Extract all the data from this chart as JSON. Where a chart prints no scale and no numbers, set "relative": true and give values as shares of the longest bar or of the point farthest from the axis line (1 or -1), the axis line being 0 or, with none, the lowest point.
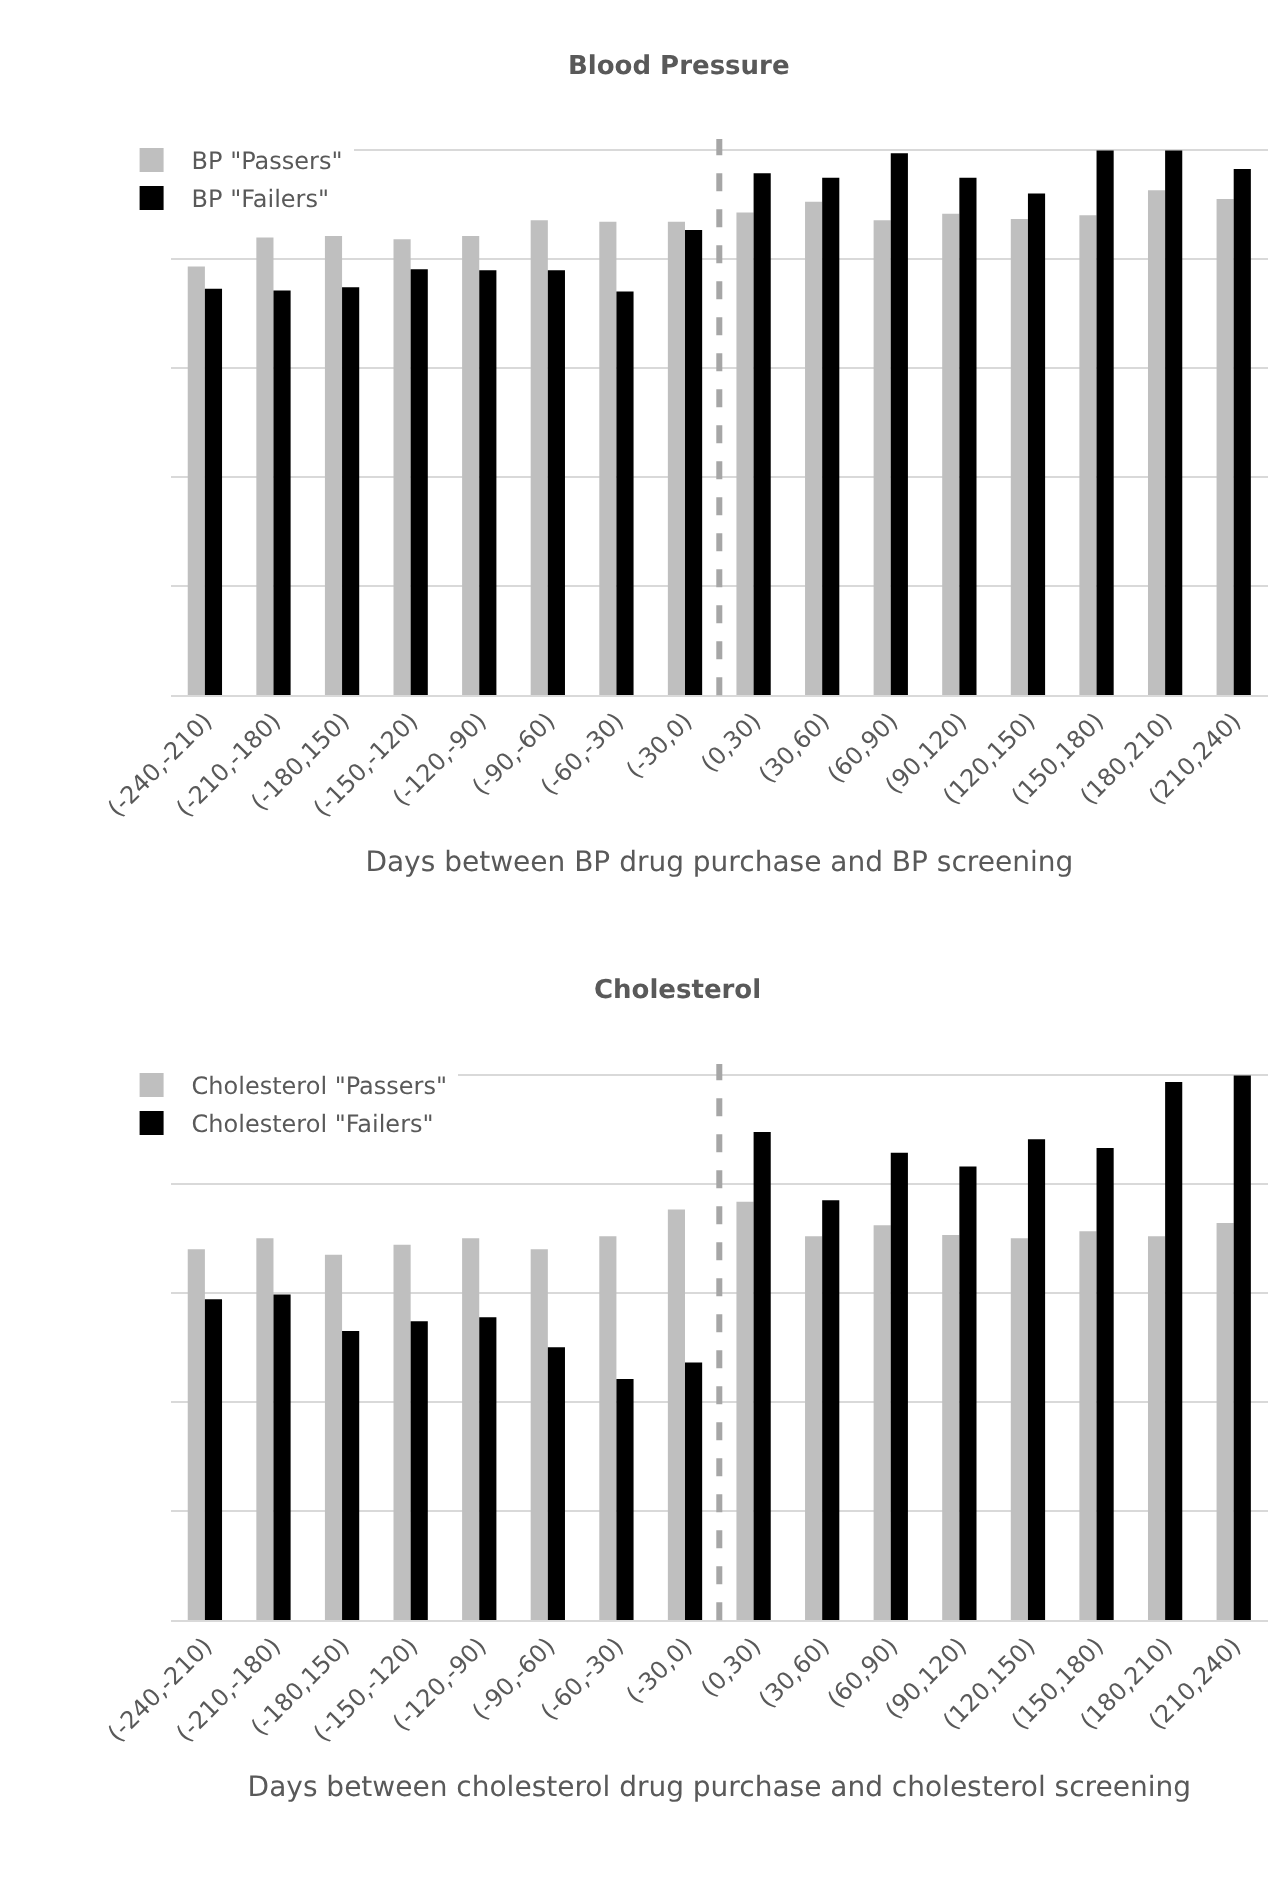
{
  "chart_data": [
    {
      "type": "bar",
      "title": "Blood Pressure",
      "xlabel": "Days between BP drug purchase and BP screening",
      "relative": true,
      "grid": "y",
      "legend": "top left",
      "categories": [
        "(-240,-210)",
        "(-210,-180)",
        "(-180,150)",
        "(-150,-120)",
        "(-120,-90)",
        "(-90,-60)",
        "(-60,-30)",
        "(-30,0)",
        "(0,30)",
        "(30,60)",
        "(60,90)",
        "(90,120)",
        "(120,150)",
        "(150,180)",
        "(180,210)",
        "(210,240)"
      ],
      "series": [
        {
          "name": "BP \"Passers\"",
          "color": "#bfbfbf",
          "values": [
            0.787,
            0.84,
            0.843,
            0.837,
            0.843,
            0.872,
            0.869,
            0.869,
            0.886,
            0.906,
            0.872,
            0.884,
            0.874,
            0.881,
            0.927,
            0.911
          ]
        },
        {
          "name": "BP \"Failers\"",
          "color": "#000000",
          "values": [
            0.746,
            0.743,
            0.749,
            0.782,
            0.78,
            0.78,
            0.741,
            0.854,
            0.958,
            0.95,
            0.995,
            0.95,
            0.921,
            1.0,
            1.0,
            0.966
          ]
        }
      ]
    },
    {
      "type": "bar",
      "title": "Cholesterol",
      "xlabel": "Days between cholesterol drug purchase and cholesterol screening",
      "relative": true,
      "grid": "y",
      "legend": "top left",
      "categories": [
        "(-240,-210)",
        "(-210,-180)",
        "(-180,150)",
        "(-150,-120)",
        "(-120,-90)",
        "(-90,-60)",
        "(-60,-30)",
        "(-30,0)",
        "(0,30)",
        "(30,60)",
        "(60,90)",
        "(90,120)",
        "(120,150)",
        "(150,180)",
        "(180,210)",
        "(210,240)"
      ],
      "series": [
        {
          "name": "Cholesterol \"Passers\"",
          "color": "#bfbfbf",
          "values": [
            0.681,
            0.701,
            0.671,
            0.689,
            0.701,
            0.681,
            0.705,
            0.754,
            0.768,
            0.705,
            0.725,
            0.707,
            0.701,
            0.714,
            0.705,
            0.729
          ]
        },
        {
          "name": "Cholesterol \"Failers\"",
          "color": "#000000",
          "values": [
            0.589,
            0.598,
            0.531,
            0.549,
            0.556,
            0.501,
            0.443,
            0.473,
            0.896,
            0.771,
            0.858,
            0.833,
            0.883,
            0.867,
            0.988,
            1.0
          ]
        }
      ]
    }
  ]
}
